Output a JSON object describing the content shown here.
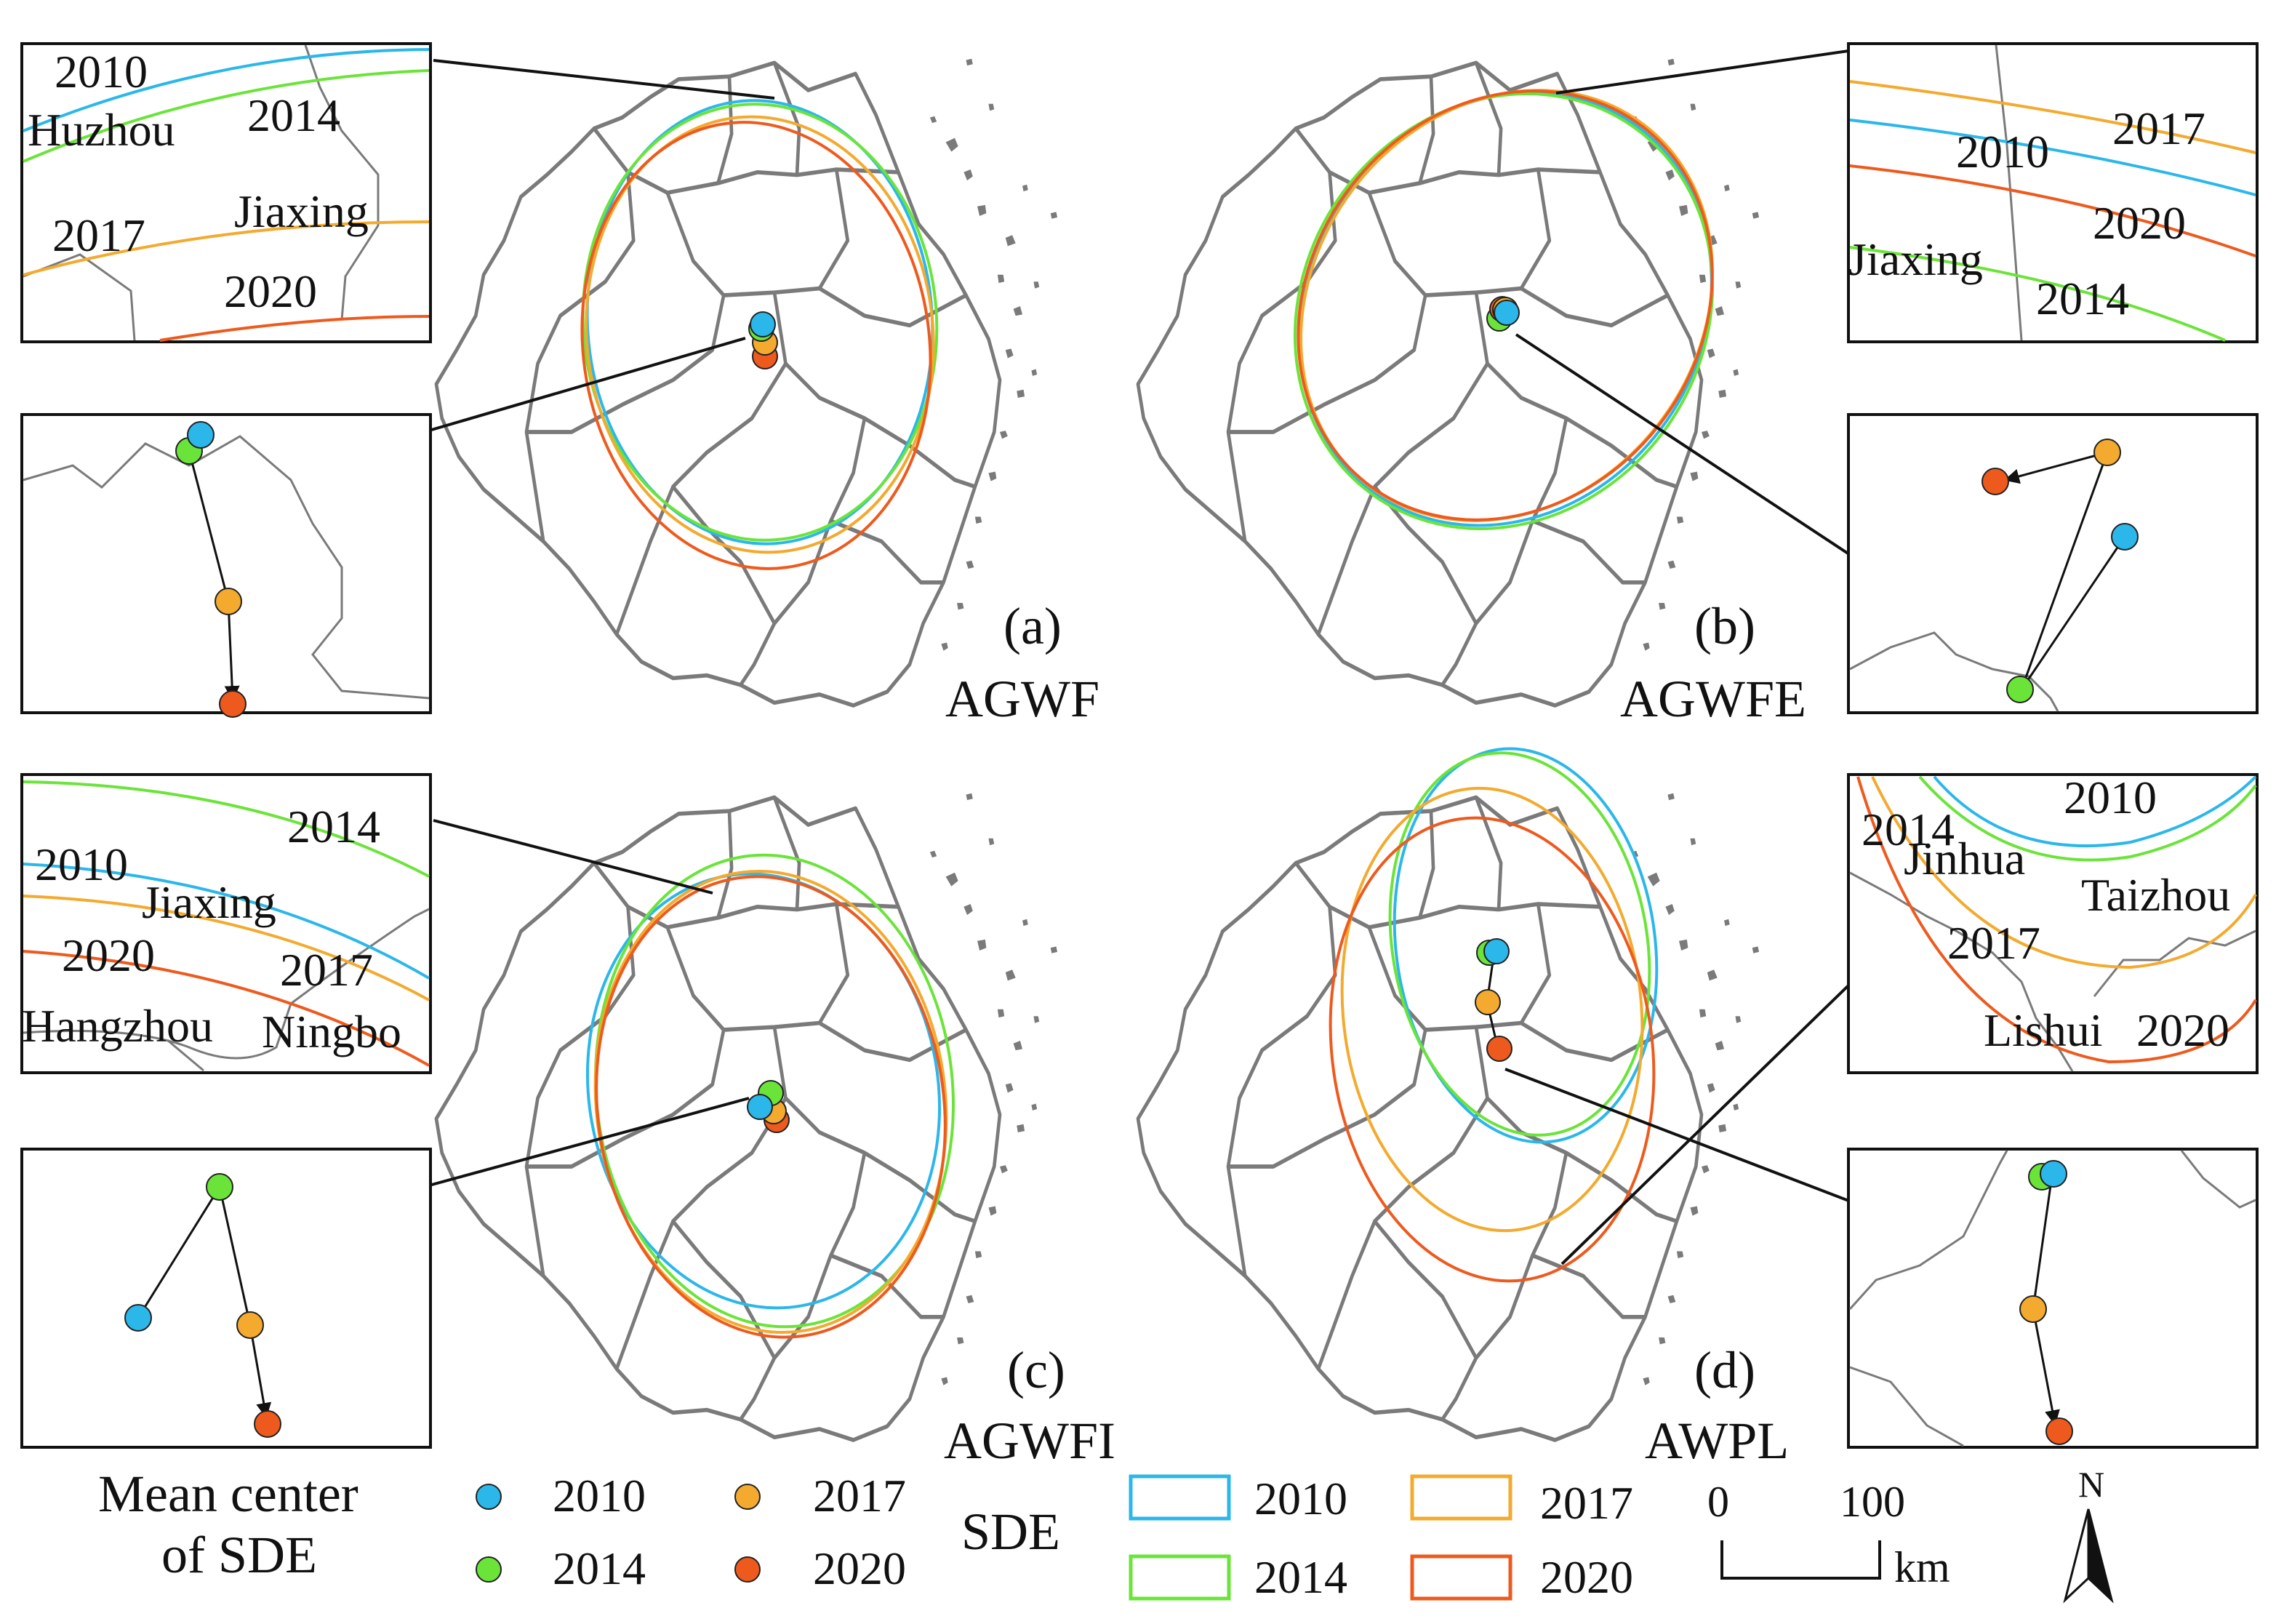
{
  "colors": {
    "y2010": "#2bb7ea",
    "y2014": "#6be43a",
    "y2017": "#f3aa2e",
    "y2020": "#ee5a1e",
    "boundary": "#7a7a7a",
    "connector": "#111111"
  },
  "panels": {
    "a": {
      "letter": "(a)",
      "name": "AGWF"
    },
    "b": {
      "letter": "(b)",
      "name": "AGWFE"
    },
    "c": {
      "letter": "(c)",
      "name": "AGWFI"
    },
    "d": {
      "letter": "(d)",
      "name": "AWPL"
    }
  },
  "insets": {
    "a_top": {
      "y2010": "2010",
      "y2014": "2014",
      "y2017": "2017",
      "y2020": "2020",
      "city1": "Huzhou",
      "city2": "Jiaxing"
    },
    "b_top": {
      "y2010": "2010",
      "y2014": "2014",
      "y2017": "2017",
      "y2020": "2020",
      "city1": "Jiaxing"
    },
    "c_top": {
      "y2010": "2010",
      "y2014": "2014",
      "y2017": "2017",
      "y2020": "2020",
      "city1": "Jiaxing",
      "city2": "Hangzhou",
      "city3": "Ningbo"
    },
    "d_top": {
      "y2010": "2010",
      "y2014": "2014",
      "y2017": "2017",
      "y2020": "2020",
      "city1": "Jinhua",
      "city2": "Taizhou",
      "city3": "Lishui"
    }
  },
  "legend": {
    "mean_center_line1": "Mean center",
    "mean_center_line2": "of SDE",
    "sde_title": "SDE",
    "years": [
      "2010",
      "2014",
      "2017",
      "2020"
    ]
  },
  "scale_bar": {
    "start": "0",
    "end": "100",
    "unit": "km"
  },
  "north_label": "N"
}
